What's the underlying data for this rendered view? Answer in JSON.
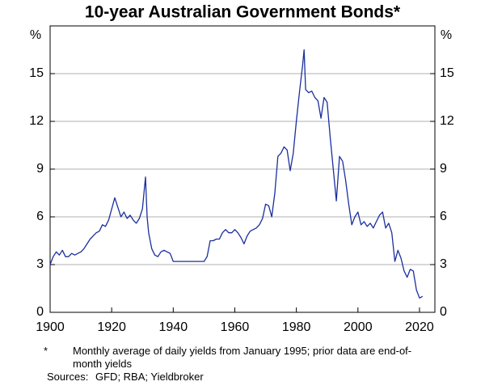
{
  "chart_data": {
    "type": "line",
    "title": "10-year Australian Government Bonds*",
    "y_unit": "%",
    "color": "#1a2f9e",
    "grid": true,
    "xlim": [
      1900,
      2025
    ],
    "xticks": [
      1900,
      1920,
      1940,
      1960,
      1980,
      2000,
      2020
    ],
    "ylim": [
      0,
      18
    ],
    "yticks": [
      0,
      3,
      6,
      9,
      12,
      15
    ],
    "x": [
      1900,
      1901,
      1902,
      1903,
      1904,
      1905,
      1906,
      1907,
      1908,
      1909,
      1910,
      1911,
      1912,
      1913,
      1914,
      1915,
      1916,
      1917,
      1918,
      1919,
      1920,
      1921,
      1922,
      1923,
      1924,
      1925,
      1926,
      1927,
      1928,
      1929,
      1930,
      1931,
      1931.5,
      1932,
      1933,
      1934,
      1935,
      1936,
      1937,
      1938,
      1939,
      1940,
      1945,
      1950,
      1951,
      1952,
      1953,
      1954,
      1955,
      1956,
      1957,
      1958,
      1959,
      1960,
      1961,
      1962,
      1963,
      1964,
      1965,
      1966,
      1967,
      1968,
      1969,
      1970,
      1971,
      1972,
      1973,
      1974,
      1975,
      1976,
      1977,
      1978,
      1979,
      1980,
      1981,
      1982,
      1982.5,
      1983,
      1984,
      1985,
      1986,
      1987,
      1988,
      1989,
      1990,
      1991,
      1992,
      1993,
      1994,
      1995,
      1996,
      1997,
      1998,
      1999,
      2000,
      2001,
      2002,
      2003,
      2004,
      2005,
      2006,
      2007,
      2008,
      2009,
      2010,
      2011,
      2012,
      2013,
      2014,
      2015,
      2016,
      2017,
      2018,
      2019,
      2020,
      2021
    ],
    "values": [
      3.0,
      3.5,
      3.8,
      3.6,
      3.9,
      3.5,
      3.5,
      3.7,
      3.6,
      3.7,
      3.8,
      4.0,
      4.3,
      4.6,
      4.8,
      5.0,
      5.1,
      5.5,
      5.4,
      5.8,
      6.5,
      7.2,
      6.6,
      6.0,
      6.3,
      5.9,
      6.1,
      5.8,
      5.6,
      5.9,
      6.5,
      8.5,
      6.0,
      5.0,
      4.0,
      3.6,
      3.5,
      3.8,
      3.9,
      3.8,
      3.7,
      3.2,
      3.2,
      3.2,
      3.5,
      4.5,
      4.5,
      4.6,
      4.6,
      5.0,
      5.2,
      5.0,
      5.0,
      5.2,
      5.0,
      4.7,
      4.3,
      4.8,
      5.1,
      5.2,
      5.3,
      5.5,
      5.9,
      6.8,
      6.7,
      6.0,
      7.5,
      9.8,
      10.0,
      10.4,
      10.2,
      8.9,
      10.0,
      12.0,
      13.8,
      15.5,
      16.5,
      14.0,
      13.8,
      13.9,
      13.5,
      13.3,
      12.2,
      13.5,
      13.2,
      11.0,
      9.0,
      7.0,
      9.8,
      9.5,
      8.3,
      6.8,
      5.5,
      6.0,
      6.3,
      5.5,
      5.7,
      5.4,
      5.6,
      5.3,
      5.7,
      6.1,
      6.3,
      5.3,
      5.6,
      5.0,
      3.2,
      3.9,
      3.4,
      2.6,
      2.2,
      2.7,
      2.6,
      1.4,
      0.9,
      1.0
    ]
  },
  "notes": {
    "marker": "*",
    "text": "Monthly average of daily yields from January 1995; prior data are end-of-month yields",
    "sources_label": "Sources:",
    "sources": "GFD; RBA; Yieldbroker"
  }
}
